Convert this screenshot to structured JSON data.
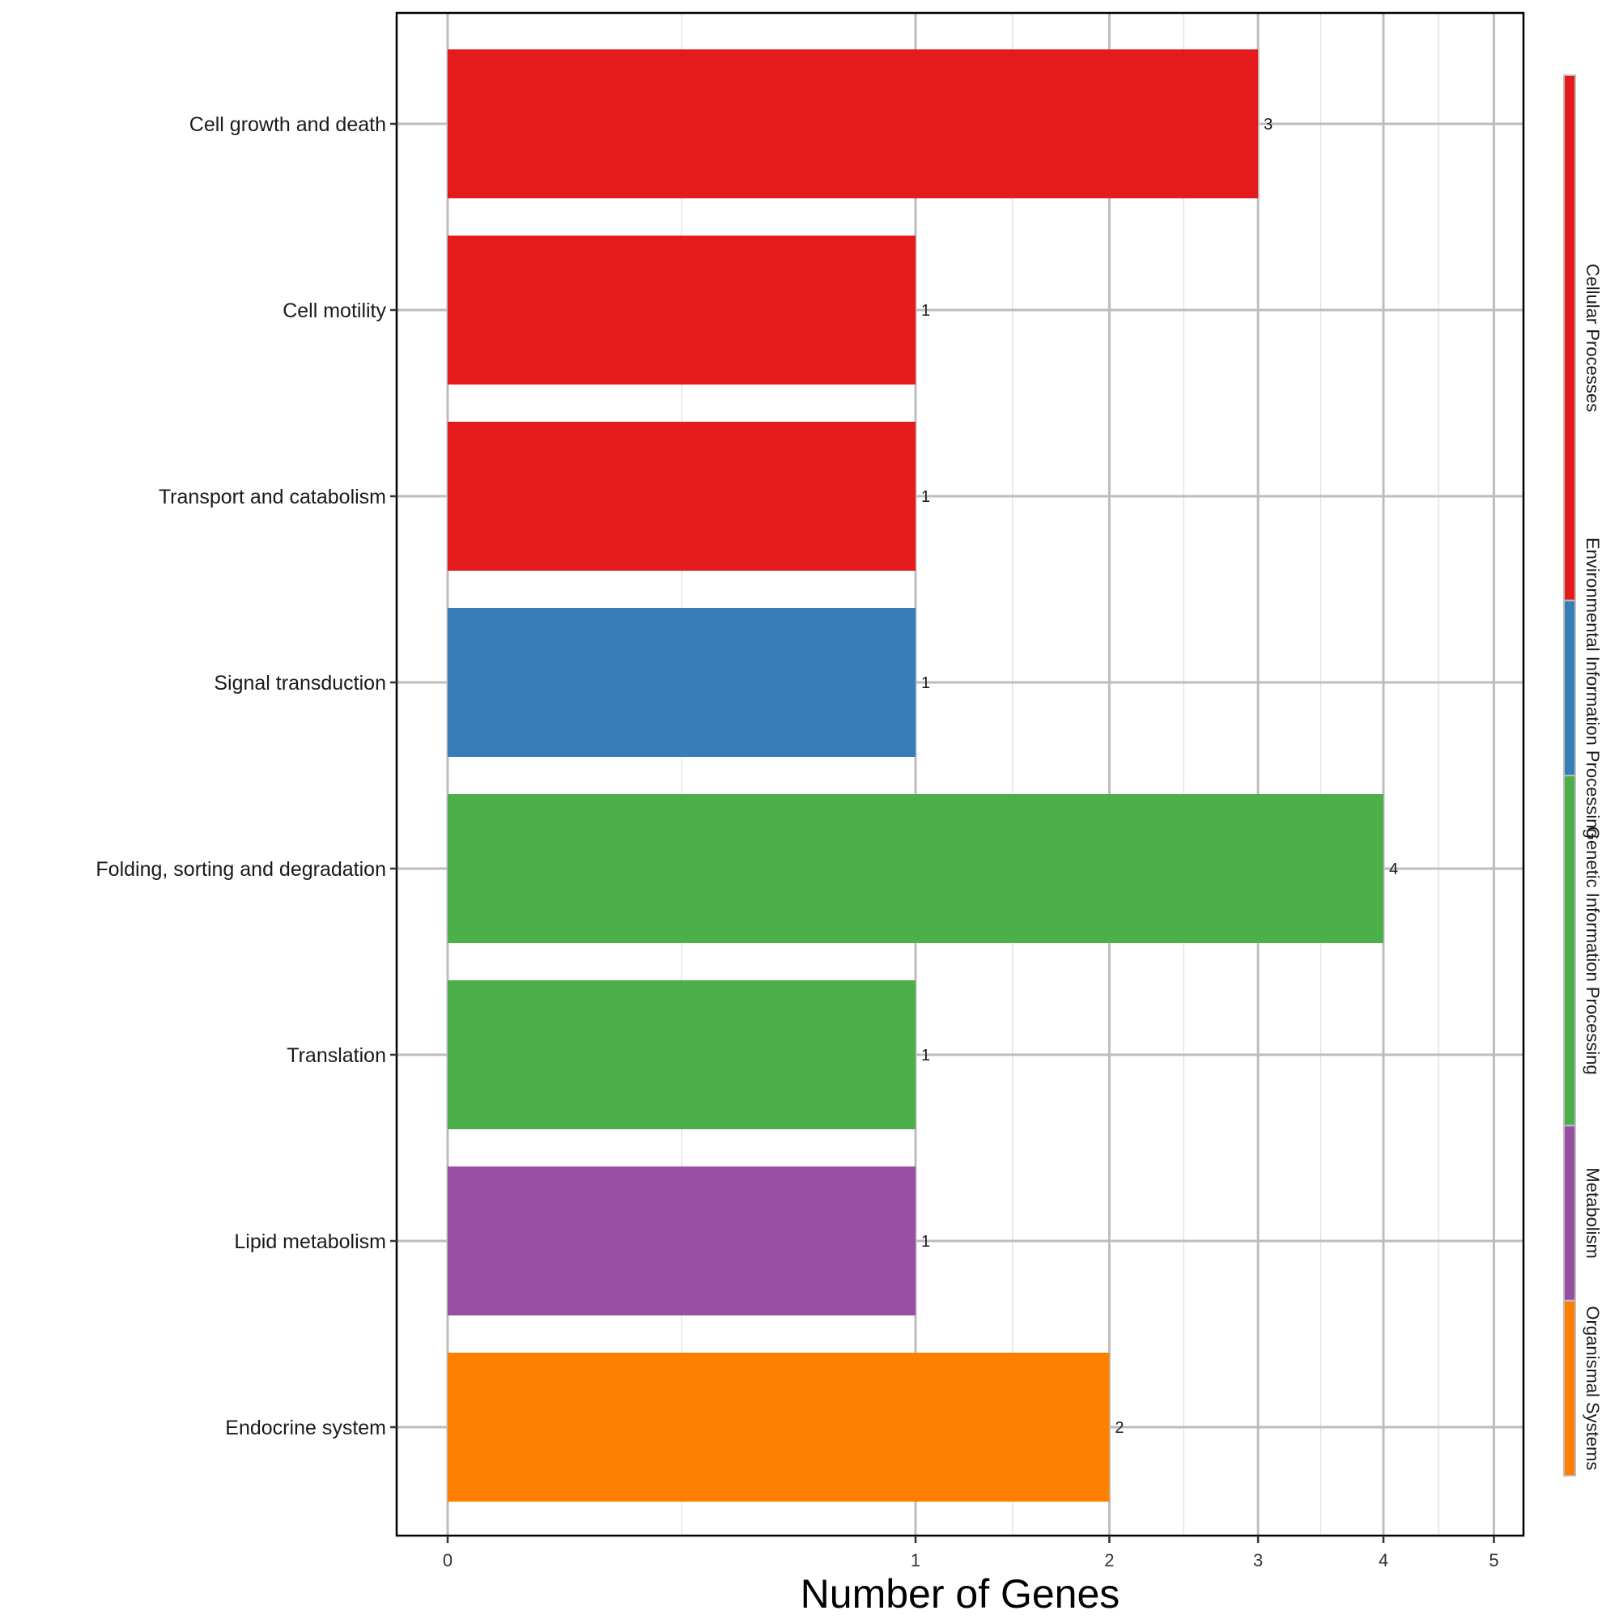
{
  "chart_data": {
    "type": "bar",
    "orientation": "horizontal",
    "xlabel": "Number of Genes",
    "ylabel": "",
    "x_scale": "sqrt",
    "xlim": [
      0,
      5
    ],
    "x_ticks": [
      0,
      1,
      2,
      3,
      4,
      5
    ],
    "grid": true,
    "legend_position": "right",
    "categories": [
      "Cell growth and death",
      "Cell motility",
      "Transport and catabolism",
      "Signal transduction",
      "Folding, sorting and degradation",
      "Translation",
      "Lipid metabolism",
      "Endocrine system"
    ],
    "values": [
      3,
      1,
      1,
      1,
      4,
      1,
      1,
      2
    ],
    "bar_groups": [
      "Cellular Processes",
      "Cellular Processes",
      "Cellular Processes",
      "Environmental Information Processing",
      "Genetic Information Processing",
      "Genetic Information Processing",
      "Metabolism",
      "Organismal Systems"
    ],
    "groups": [
      {
        "name": "Cellular Processes",
        "color": "#e41a1c"
      },
      {
        "name": "Environmental Information Processing",
        "color": "#377eb8"
      },
      {
        "name": "Genetic Information Processing",
        "color": "#4daf4a"
      },
      {
        "name": "Metabolism",
        "color": "#984ea3"
      },
      {
        "name": "Organismal Systems",
        "color": "#ff7f00"
      }
    ]
  }
}
